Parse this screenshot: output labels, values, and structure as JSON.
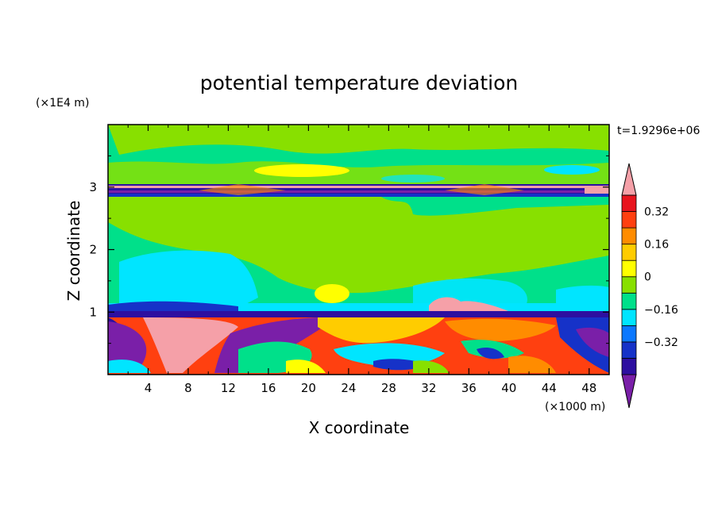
{
  "chart_data": {
    "type": "heatmap",
    "title": "potential temperature deviation",
    "xlabel": "X coordinate",
    "ylabel": "Z coordinate",
    "x_unit": "(×1000 m)",
    "y_unit": "(×1E4 m)",
    "time_label": "t=1.9296e+06",
    "xlim": [
      0,
      50
    ],
    "ylim": [
      0,
      4
    ],
    "x_ticks": [
      "4",
      "8",
      "12",
      "16",
      "20",
      "24",
      "28",
      "32",
      "36",
      "40",
      "44",
      "48"
    ],
    "y_ticks": [
      "1",
      "2",
      "3"
    ],
    "colorbar": {
      "levels": [
        -0.48,
        -0.4,
        -0.32,
        -0.24,
        -0.16,
        -0.08,
        0,
        0.08,
        0.16,
        0.24,
        0.32,
        0.4,
        0.48
      ],
      "colors": [
        "#7a1fa8",
        "#2d0fa0",
        "#1632c8",
        "#0b78ff",
        "#00e5ff",
        "#00e08a",
        "#88e000",
        "#ffff00",
        "#ffcc00",
        "#ff8c00",
        "#ff4010",
        "#e8141e",
        "#f5a0a8"
      ],
      "labels": [
        "0.32",
        "0.16",
        "0",
        "−0.16",
        "−0.32"
      ],
      "extend": "both"
    }
  }
}
